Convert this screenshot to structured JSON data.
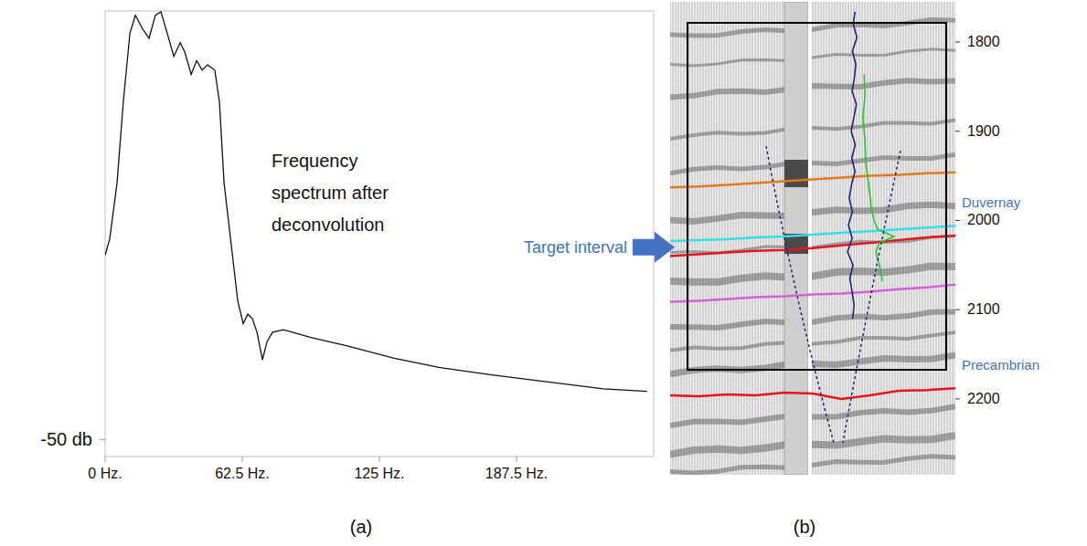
{
  "chart_data": [
    {
      "type": "line",
      "label": "(a)",
      "annotation": "Frequency spectrum after deconvolution",
      "color": "#111111",
      "x": [
        0,
        2.1,
        5.4,
        8.3,
        11.3,
        13.8,
        17.1,
        20,
        22.9,
        25.4,
        28.3,
        31.3,
        34.2,
        36.3,
        39.2,
        41.7,
        44.2,
        46.7,
        50,
        52.1,
        54.2,
        57.1,
        60.4,
        62.9,
        65,
        67.1,
        69.2,
        71.7,
        73.8,
        76.3,
        81.3,
        93.8,
        110.4,
        131.3,
        152.1,
        177.1,
        202.1,
        227.1,
        247
      ],
      "values": [
        -28.5,
        -26.6,
        -20.1,
        -10.6,
        -2.6,
        -0.5,
        -2.1,
        -3.2,
        -0.5,
        -0.1,
        -2.6,
        -5.3,
        -3.7,
        -4.8,
        -7.4,
        -5.8,
        -6.9,
        -6.3,
        -6.9,
        -10.6,
        -20.1,
        -26.4,
        -33.8,
        -36.5,
        -35.4,
        -35.9,
        -37.5,
        -40.7,
        -38.6,
        -37.5,
        -37.2,
        -38.1,
        -39.1,
        -40.5,
        -41.6,
        -42.5,
        -43.3,
        -44.1,
        -44.4
      ],
      "xlim": [
        0,
        250
      ],
      "xticks": [
        {
          "value": 0,
          "label": "0 Hz."
        },
        {
          "value": 62.5,
          "label": "62.5 Hz."
        },
        {
          "value": 125,
          "label": "125 Hz."
        },
        {
          "value": 187.5,
          "label": "187.5 Hz."
        }
      ],
      "ylim": [
        -52,
        0
      ],
      "yticks": [
        {
          "value": -50,
          "label": "-50 db"
        }
      ],
      "grid": false
    },
    {
      "type": "seismic_section",
      "label": "(b)",
      "annotation": {
        "text": "Target interval",
        "value": 2030
      },
      "xlim": [
        0,
        100
      ],
      "ylim": [
        1755,
        2285
      ],
      "yticks": [
        1800,
        1900,
        2000,
        2100,
        2200
      ],
      "tick_labels": "y",
      "x": [
        0,
        10,
        20,
        30,
        40,
        50,
        60,
        70,
        80,
        90,
        100
      ],
      "horizons": [
        {
          "color": "#e07b16",
          "values": [
            1963,
            1962,
            1960,
            1958,
            1956,
            1954,
            1952,
            1950,
            1949,
            1947,
            1946
          ]
        },
        {
          "color": "#33e0e8",
          "label": "Duvernay",
          "values": [
            2023,
            2022,
            2021,
            2019,
            2018,
            2016,
            2014,
            2012,
            2010,
            2008,
            2006
          ]
        },
        {
          "color": "#e8141c",
          "values": [
            2040,
            2038,
            2036,
            2034,
            2033,
            2031,
            2028,
            2025,
            2022,
            2019,
            2017
          ]
        },
        {
          "color": "#d660d6",
          "values": [
            2091,
            2090,
            2088,
            2086,
            2085,
            2083,
            2082,
            2080,
            2077,
            2075,
            2072
          ]
        },
        {
          "color": "#e8141c",
          "label": "Precambrian",
          "values": [
            2196,
            2197,
            2195,
            2196,
            2193,
            2194,
            2200,
            2196,
            2191,
            2190,
            2188
          ]
        }
      ],
      "logs": [
        {
          "color": "#1a237e",
          "t": [
            1766,
            1780,
            1795,
            1810,
            1825,
            1840,
            1855,
            1870,
            1885,
            1900,
            1915,
            1930,
            1945,
            1960,
            1975,
            1990,
            2005,
            2020,
            2035,
            2050,
            2065,
            2080,
            2095,
            2110
          ],
          "values": [
            64.8,
            64.2,
            65.5,
            63.9,
            65.1,
            64.6,
            63.8,
            65.3,
            64.4,
            63.5,
            64.9,
            63.7,
            64.8,
            63.6,
            62.8,
            63.9,
            62.5,
            63.8,
            62.2,
            64.1,
            63.0,
            63.8,
            64.5,
            64.0
          ]
        },
        {
          "color": "#22cc22",
          "t": [
            1836,
            1860,
            1885,
            1910,
            1935,
            1960,
            1985,
            2000,
            2010,
            2018,
            2025,
            2035,
            2050,
            2068
          ],
          "values": [
            68.0,
            68.3,
            67.6,
            68.3,
            68.6,
            69.6,
            70.5,
            71.5,
            72.8,
            78.5,
            73.4,
            72.1,
            73.4,
            74.4
          ]
        }
      ]
    }
  ]
}
